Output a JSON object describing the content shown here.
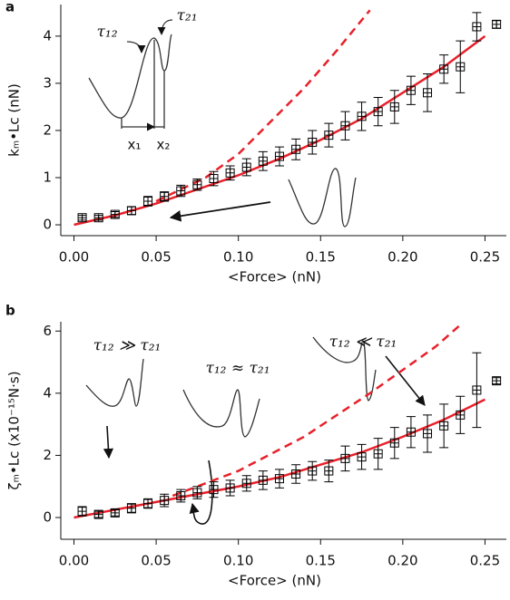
{
  "chart_data": [
    {
      "type": "errorbar",
      "panel_label": "a",
      "xlabel": "<Force> (nN)",
      "ylabel": "kₘ•Lc (nN)",
      "xlim": [
        -0.008,
        0.263
      ],
      "ylim": [
        -0.23,
        4.67
      ],
      "xticks": [
        {
          "value": 0,
          "label": "0.00"
        },
        0.05,
        {
          "value": 0.1,
          "label": "0.10"
        },
        0.15,
        {
          "value": 0.2,
          "label": "0.20"
        },
        0.25
      ],
      "yticks": [
        0,
        1,
        2,
        3,
        4
      ],
      "points": {
        "color": "#000000",
        "x": [
          0.005,
          0.015,
          0.025,
          0.035,
          0.045,
          0.055,
          0.065,
          0.075,
          0.085,
          0.095,
          0.105,
          0.115,
          0.125,
          0.135,
          0.145,
          0.155,
          0.165,
          0.175,
          0.185,
          0.195,
          0.205,
          0.215,
          0.225,
          0.235,
          0.245,
          0.257
        ],
        "values": [
          0.15,
          0.15,
          0.22,
          0.3,
          0.5,
          0.6,
          0.72,
          0.85,
          0.98,
          1.1,
          1.22,
          1.35,
          1.45,
          1.6,
          1.75,
          1.9,
          2.1,
          2.3,
          2.4,
          2.5,
          2.85,
          2.8,
          3.3,
          3.35,
          4.2,
          4.25
        ],
        "errors": [
          0.05,
          0.05,
          0.06,
          0.08,
          0.1,
          0.1,
          0.12,
          0.12,
          0.15,
          0.15,
          0.18,
          0.2,
          0.2,
          0.22,
          0.25,
          0.25,
          0.3,
          0.3,
          0.3,
          0.35,
          0.3,
          0.4,
          0.3,
          0.55,
          0.3,
          0.08
        ]
      },
      "fit": {
        "color": "#e8202a",
        "x": [
          0,
          0.025,
          0.05,
          0.075,
          0.1,
          0.125,
          0.15,
          0.175,
          0.2,
          0.225,
          0.25
        ],
        "values": [
          0,
          0.2,
          0.45,
          0.75,
          1.05,
          1.4,
          1.8,
          2.25,
          2.8,
          3.35,
          4.0
        ]
      },
      "dashed": {
        "color": "#e8202a",
        "x": [
          0.05,
          0.08,
          0.1,
          0.12,
          0.14,
          0.16,
          0.18
        ],
        "values": [
          0.5,
          1.0,
          1.5,
          2.2,
          2.9,
          3.7,
          4.55
        ]
      },
      "annotations": [
        "τ₁₂",
        "τ₂₁",
        "x₁",
        "x₂"
      ]
    },
    {
      "type": "errorbar",
      "panel_label": "b",
      "xlabel": "<Force> (nN)",
      "ylabel": "ζₘ•Lc (x10⁻¹⁵N·s)",
      "xlim": [
        -0.008,
        0.263
      ],
      "ylim": [
        -0.7,
        6.3
      ],
      "xticks": [
        {
          "value": 0,
          "label": "0.00"
        },
        0.05,
        {
          "value": 0.1,
          "label": "0.10"
        },
        0.15,
        {
          "value": 0.2,
          "label": "0.20"
        },
        0.25
      ],
      "yticks": [
        0,
        2,
        4,
        6
      ],
      "points": {
        "color": "#000000",
        "x": [
          0.005,
          0.015,
          0.025,
          0.035,
          0.045,
          0.055,
          0.065,
          0.075,
          0.085,
          0.095,
          0.105,
          0.115,
          0.125,
          0.135,
          0.145,
          0.155,
          0.165,
          0.175,
          0.185,
          0.195,
          0.205,
          0.215,
          0.225,
          0.235,
          0.245,
          0.257
        ],
        "values": [
          0.2,
          0.1,
          0.15,
          0.3,
          0.45,
          0.55,
          0.7,
          0.8,
          0.9,
          0.95,
          1.1,
          1.2,
          1.25,
          1.4,
          1.5,
          1.5,
          1.9,
          1.95,
          2.05,
          2.4,
          2.75,
          2.7,
          2.95,
          3.3,
          4.1,
          4.4
        ],
        "errors": [
          0.15,
          0.1,
          0.1,
          0.15,
          0.15,
          0.2,
          0.2,
          0.2,
          0.25,
          0.25,
          0.25,
          0.3,
          0.3,
          0.3,
          0.3,
          0.35,
          0.4,
          0.4,
          0.5,
          0.5,
          0.5,
          0.6,
          0.7,
          0.6,
          1.2,
          0.1
        ]
      },
      "fit": {
        "color": "#e8202a",
        "x": [
          0,
          0.025,
          0.05,
          0.075,
          0.1,
          0.125,
          0.15,
          0.175,
          0.2,
          0.225,
          0.25
        ],
        "values": [
          0,
          0.25,
          0.5,
          0.75,
          1.0,
          1.3,
          1.7,
          2.1,
          2.6,
          3.15,
          3.8
        ]
      },
      "dashed": {
        "color": "#e8202a",
        "x": [
          0.06,
          0.1,
          0.14,
          0.18,
          0.22,
          0.235
        ],
        "values": [
          0.7,
          1.5,
          2.6,
          4.0,
          5.5,
          6.2
        ]
      },
      "annotations": [
        "τ₁₂ ≫ τ₂₁",
        "τ₁₂ ≈ τ₂₁",
        "τ₁₂ ≪ τ₂₁"
      ]
    }
  ]
}
